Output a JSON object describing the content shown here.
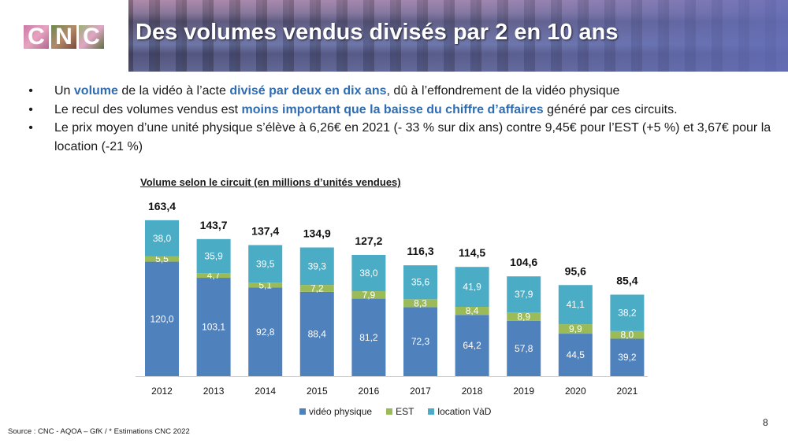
{
  "header": {
    "logo_text": [
      "C",
      "N",
      "C"
    ],
    "title": "Des volumes vendus divisés par 2 en 10 ans"
  },
  "bullets": [
    {
      "parts": [
        {
          "text": "Un ",
          "hl": false
        },
        {
          "text": "volume",
          "hl": true
        },
        {
          "text": " de la vidéo à l’acte ",
          "hl": false
        },
        {
          "text": "divisé par deux en dix ans",
          "hl": true
        },
        {
          "text": ", dû à l’effondrement de la vidéo physique",
          "hl": false
        }
      ]
    },
    {
      "parts": [
        {
          "text": "Le recul des volumes vendus est ",
          "hl": false
        },
        {
          "text": "moins important que la baisse du chiffre d’affaires",
          "hl": true
        },
        {
          "text": " généré par ces circuits.",
          "hl": false
        }
      ]
    },
    {
      "parts": [
        {
          "text": "Le prix moyen d’une unité physique s’élève à 6,26€ en 2021 (- 33 % sur dix ans) contre 9,45€ pour l’EST (+5 %) et 3,67€ pour la location (-21 %)",
          "hl": false
        }
      ]
    }
  ],
  "bullet_symbol": "•",
  "colors": {
    "highlight": "#2e6db4",
    "video_physique": "#4f81bd",
    "est": "#9bbb59",
    "location_vad": "#4bacc6"
  },
  "chart_data": {
    "type": "bar",
    "stacked": true,
    "title": "Volume selon le circuit (en millions d’unités vendues)",
    "xlabel": "",
    "ylabel": "",
    "categories": [
      "2012",
      "2013",
      "2014",
      "2015",
      "2016",
      "2017",
      "2018",
      "2019",
      "2020",
      "2021"
    ],
    "series": [
      {
        "name": "vidéo physique",
        "color": "#4f81bd",
        "values": [
          120.0,
          103.1,
          92.8,
          88.4,
          81.2,
          72.3,
          64.2,
          57.8,
          44.5,
          39.2
        ],
        "labels": [
          "120,0",
          "103,1",
          "92,8",
          "88,4",
          "81,2",
          "72,3",
          "64,2",
          "57,8",
          "44,5",
          "39,2"
        ]
      },
      {
        "name": "EST",
        "color": "#9bbb59",
        "values": [
          5.5,
          4.7,
          5.1,
          7.2,
          7.9,
          8.3,
          8.4,
          8.9,
          9.9,
          8.0
        ],
        "labels": [
          "5,5",
          "4,7",
          "5,1",
          "7,2",
          "7,9",
          "8,3",
          "8,4",
          "8,9",
          "9,9",
          "8,0"
        ]
      },
      {
        "name": "location VàD",
        "color": "#4bacc6",
        "values": [
          38.0,
          35.9,
          39.5,
          39.3,
          38.0,
          35.6,
          41.9,
          37.9,
          41.1,
          38.2
        ],
        "labels": [
          "38,0",
          "35,9",
          "39,5",
          "39,3",
          "38,0",
          "35,6",
          "41,9",
          "37,9",
          "41,1",
          "38,2"
        ]
      }
    ],
    "totals": [
      163.4,
      143.7,
      137.4,
      134.9,
      127.2,
      116.3,
      114.5,
      104.6,
      95.6,
      85.4
    ],
    "total_labels": [
      "163,4",
      "143,7",
      "137,4",
      "134,9",
      "127,2",
      "116,3",
      "114,5",
      "104,6",
      "95,6",
      "85,4"
    ],
    "ylim": [
      0,
      165
    ],
    "grid": false,
    "legend_position": "bottom"
  },
  "footer": {
    "source": "Source : CNC  - AQOA – GfK / * Estimations CNC 2022",
    "page_number": "8"
  }
}
